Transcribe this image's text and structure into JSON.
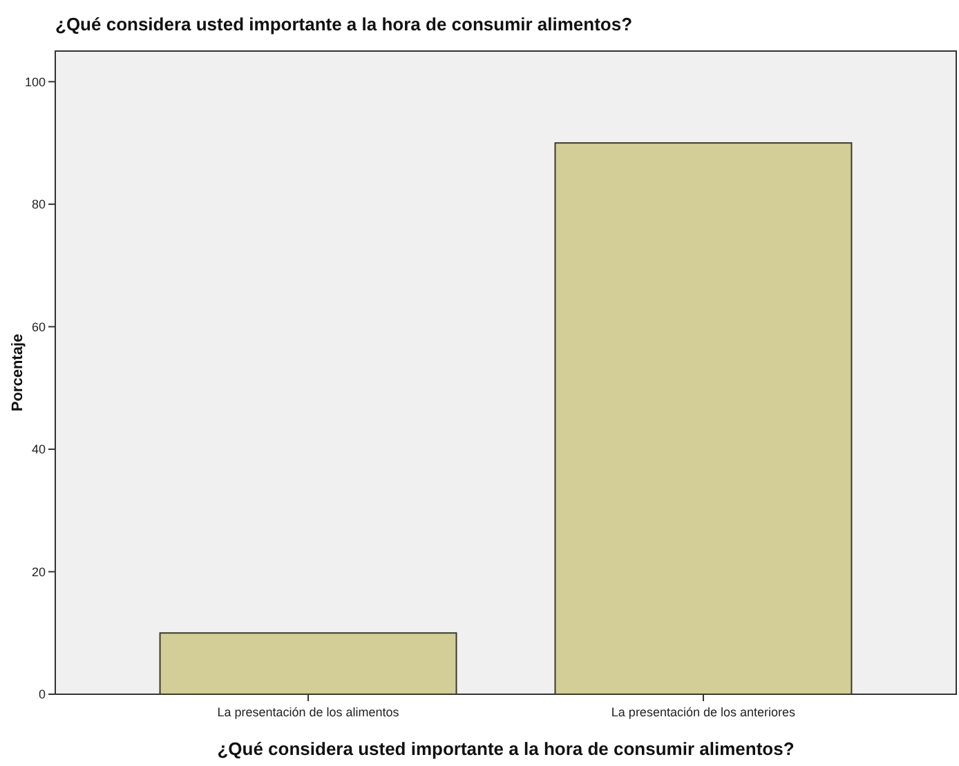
{
  "chart_data": {
    "type": "bar",
    "title": "¿Qué considera usted importante a la hora de consumir alimentos?",
    "xlabel": "¿Qué considera usted importante a la hora de consumir alimentos?",
    "ylabel": "Porcentaje",
    "categories": [
      "La presentación de los alimentos",
      "La presentación de los anteriores"
    ],
    "values": [
      10,
      90
    ],
    "color": "#d3ce97",
    "ylim": [
      0,
      105
    ],
    "yticks": [
      0,
      20,
      40,
      60,
      80,
      100
    ],
    "grid": false
  }
}
